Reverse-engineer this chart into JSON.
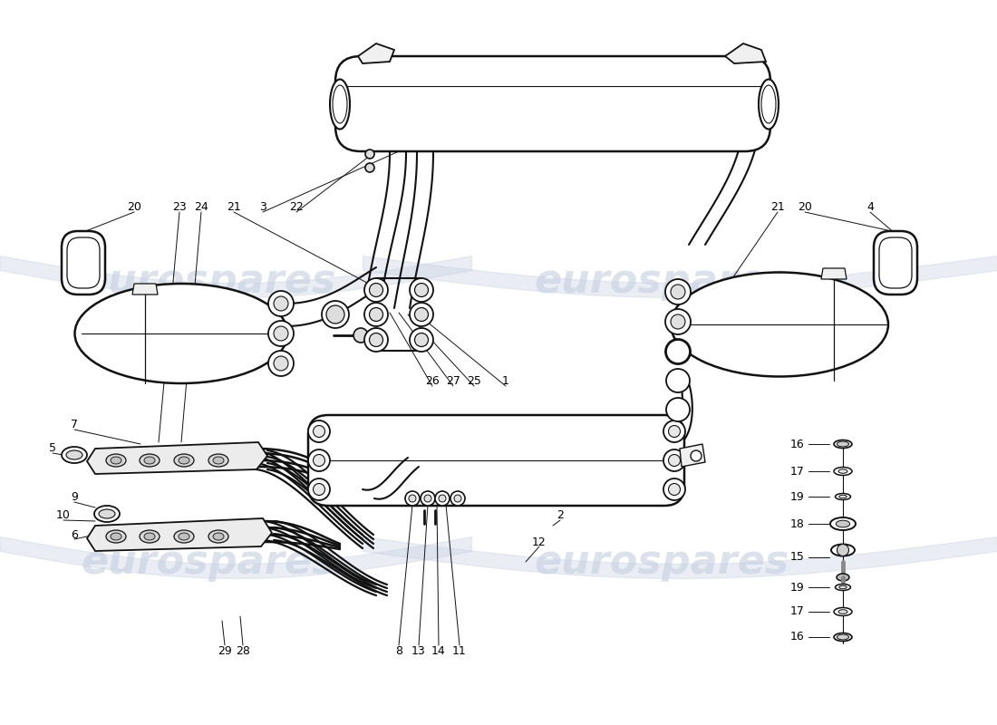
{
  "bg": "#ffffff",
  "lc": "#111111",
  "wm_color": "#c5cfe0",
  "wm_text": "eurospares",
  "figsize": [
    11.0,
    8.0
  ],
  "dpi": 100
}
